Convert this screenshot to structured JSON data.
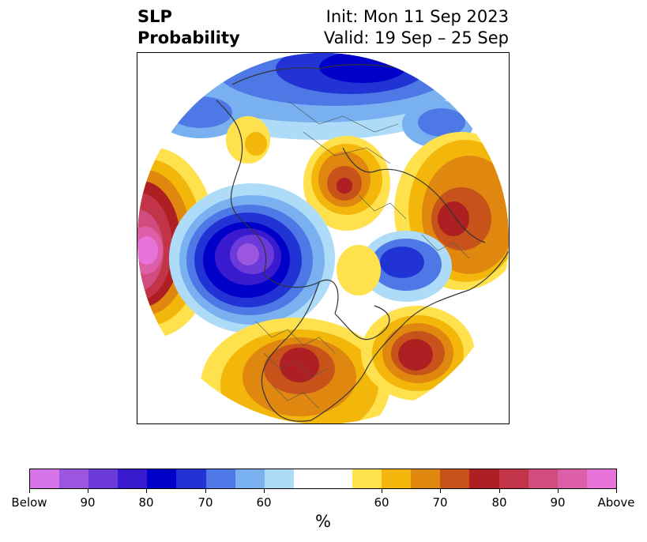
{
  "header": {
    "title_line1": "SLP",
    "title_line2": "Probability",
    "init": "Init: Mon 11 Sep 2023",
    "valid": "Valid: 19 Sep – 25 Sep"
  },
  "colorbar": {
    "colors": [
      "#d674e8",
      "#9c57e0",
      "#6b3ad9",
      "#3a1acf",
      "#0000c8",
      "#2233d6",
      "#4d78e6",
      "#78b0f0",
      "#aedcf8",
      "#ffffff",
      "#ffffff",
      "#ffe14d",
      "#f2b70a",
      "#e0870f",
      "#c8531a",
      "#ad1f22",
      "#c23448",
      "#d14d7f",
      "#dd5fa8",
      "#e772d8"
    ],
    "tick_labels": [
      "Below",
      "90",
      "80",
      "70",
      "60",
      "60",
      "70",
      "80",
      "90",
      "Above"
    ],
    "unit": "%"
  },
  "map": {
    "projection": "polar-stereographic-north",
    "features": "coastlines-and-borders"
  }
}
